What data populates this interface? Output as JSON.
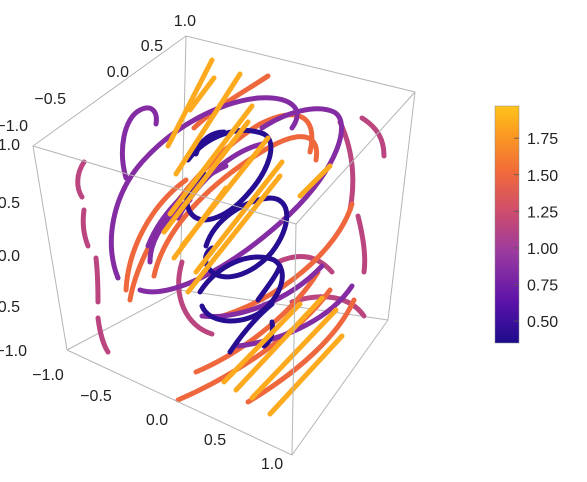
{
  "chart_data": {
    "type": "3d-stream-lines",
    "title": "",
    "x_axis": {
      "range": [
        -1.0,
        1.0
      ],
      "ticks": [
        "−1.0",
        "−0.5",
        "0.0",
        "0.5",
        "1.0"
      ]
    },
    "y_axis": {
      "range": [
        -1.0,
        1.0
      ],
      "ticks": [
        "−1.0",
        "−0.5",
        "0.0",
        "0.5",
        "1.0"
      ]
    },
    "z_axis": {
      "range": [
        -1.0,
        1.0
      ],
      "ticks": [
        "−1.0",
        "−0.5",
        "0.0",
        "0.5",
        "1.0"
      ]
    },
    "colorbar": {
      "range": [
        0.35,
        1.97
      ],
      "ticks": [
        "0.50",
        "0.75",
        "1.00",
        "1.25",
        "1.50",
        "1.75"
      ],
      "tick_values": [
        0.5,
        0.75,
        1.0,
        1.25,
        1.5,
        1.75
      ],
      "colors": [
        "#1c0c8c",
        "#5a12a8",
        "#9a3aa0",
        "#cc4c6e",
        "#f16a3a",
        "#fb9a22",
        "#ffc41a"
      ]
    },
    "grid": false,
    "box": true,
    "curve_groups": [
      {
        "magnitude": 0.4,
        "description": "innermost loops"
      },
      {
        "magnitude": 0.85,
        "description": "middle loops"
      },
      {
        "magnitude": 1.15,
        "description": "outer arcs"
      },
      {
        "magnitude": 1.5,
        "description": "outer ellipses"
      },
      {
        "magnitude": 1.85,
        "description": "straight segments"
      }
    ]
  }
}
